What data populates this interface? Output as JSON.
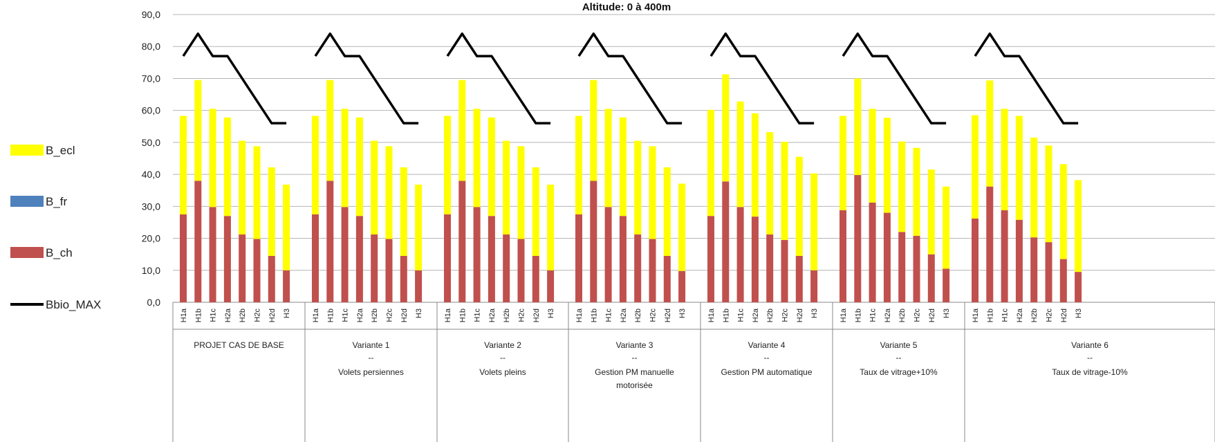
{
  "chart_data": {
    "type": "bar",
    "stacked": true,
    "title": "Altitude: 0 à 400m",
    "ylim": [
      0,
      90
    ],
    "yticks": [
      "0,0",
      "10,0",
      "20,0",
      "30,0",
      "40,0",
      "50,0",
      "60,0",
      "70,0",
      "80,0",
      "90,0"
    ],
    "categories": [
      "H1a",
      "H1b",
      "H1c",
      "H2a",
      "H2b",
      "H2c",
      "H2d",
      "H3"
    ],
    "groups": [
      {
        "label": "PROJET CAS DE BASE",
        "sep": "",
        "desc": "",
        "desc2": ""
      },
      {
        "label": "Variante 1",
        "sep": "--",
        "desc": "Volets persiennes",
        "desc2": ""
      },
      {
        "label": "Variante 2",
        "sep": "--",
        "desc": "Volets pleins",
        "desc2": ""
      },
      {
        "label": "Variante 3",
        "sep": "--",
        "desc": "Gestion PM manuelle",
        "desc2": "motorisée"
      },
      {
        "label": "Variante 4",
        "sep": "--",
        "desc": "Gestion PM automatique",
        "desc2": ""
      },
      {
        "label": "Variante 5",
        "sep": "--",
        "desc": "Taux de vitrage+10%",
        "desc2": ""
      },
      {
        "label": "Variante 6",
        "sep": "--",
        "desc": "Taux de vitrage-10%",
        "desc2": ""
      }
    ],
    "legend": [
      {
        "key": "B_ecl",
        "label": "B_ecl",
        "kind": "box"
      },
      {
        "key": "B_fr",
        "label": "B_fr",
        "kind": "box"
      },
      {
        "key": "B_ch",
        "label": "B_ch",
        "kind": "box"
      },
      {
        "key": "Bbio_MAX",
        "label": "Bbio_MAX",
        "kind": "line"
      }
    ],
    "colors": {
      "B_ch": "#c0504d",
      "B_fr": "#4f81bd",
      "B_ecl": "#ffff00",
      "Bbio_MAX": "#000000"
    },
    "series": [
      {
        "name": "B_ch",
        "values": [
          [
            27.5,
            38,
            29.8,
            27,
            21.2,
            19.8,
            14.5,
            10
          ],
          [
            27.5,
            38,
            29.8,
            27,
            21.2,
            19.8,
            14.5,
            10
          ],
          [
            27.5,
            38,
            29.8,
            27,
            21.2,
            19.8,
            14.5,
            10
          ],
          [
            27.5,
            38,
            29.8,
            27,
            21.2,
            19.8,
            14.5,
            9.8
          ],
          [
            27,
            37.8,
            29.8,
            26.8,
            21.2,
            19.5,
            14.5,
            10
          ],
          [
            28.8,
            39.8,
            31.2,
            28,
            22,
            20.8,
            15,
            10.5
          ],
          [
            26.2,
            36.2,
            28.8,
            25.8,
            20.3,
            18.8,
            13.5,
            9.5
          ]
        ]
      },
      {
        "name": "B_fr",
        "values": [
          [
            0,
            0,
            0,
            0,
            0,
            0,
            0,
            0
          ],
          [
            0,
            0,
            0,
            0,
            0,
            0,
            0,
            0
          ],
          [
            0,
            0,
            0,
            0,
            0,
            0,
            0,
            0
          ],
          [
            0,
            0,
            0,
            0,
            0,
            0,
            0,
            0
          ],
          [
            0,
            0,
            0,
            0,
            0,
            0,
            0,
            0
          ],
          [
            0,
            0,
            0,
            0,
            0,
            0,
            0,
            0
          ],
          [
            0,
            0,
            0,
            0,
            0,
            0,
            0,
            0
          ]
        ]
      },
      {
        "name": "B_ecl",
        "values": [
          [
            30.8,
            31.5,
            30.7,
            30.8,
            29.3,
            29,
            27.7,
            26.8
          ],
          [
            30.8,
            31.5,
            30.7,
            30.8,
            29.3,
            29,
            27.7,
            26.8
          ],
          [
            30.8,
            31.5,
            30.7,
            30.8,
            29.3,
            29,
            27.7,
            26.8
          ],
          [
            30.8,
            31.5,
            30.7,
            30.8,
            29.3,
            29,
            27.7,
            27.3
          ],
          [
            33.2,
            33.5,
            33,
            32.3,
            32,
            30.7,
            31,
            30.3
          ],
          [
            29.5,
            30.2,
            29.3,
            29.7,
            28.3,
            27.5,
            26.5,
            25.7
          ],
          [
            32.3,
            33.2,
            31.7,
            32.5,
            31.2,
            30.2,
            29.7,
            28.7
          ]
        ]
      },
      {
        "name": "Bbio_MAX",
        "values": [
          77,
          84,
          77,
          77,
          70,
          63,
          56,
          56
        ]
      }
    ]
  }
}
